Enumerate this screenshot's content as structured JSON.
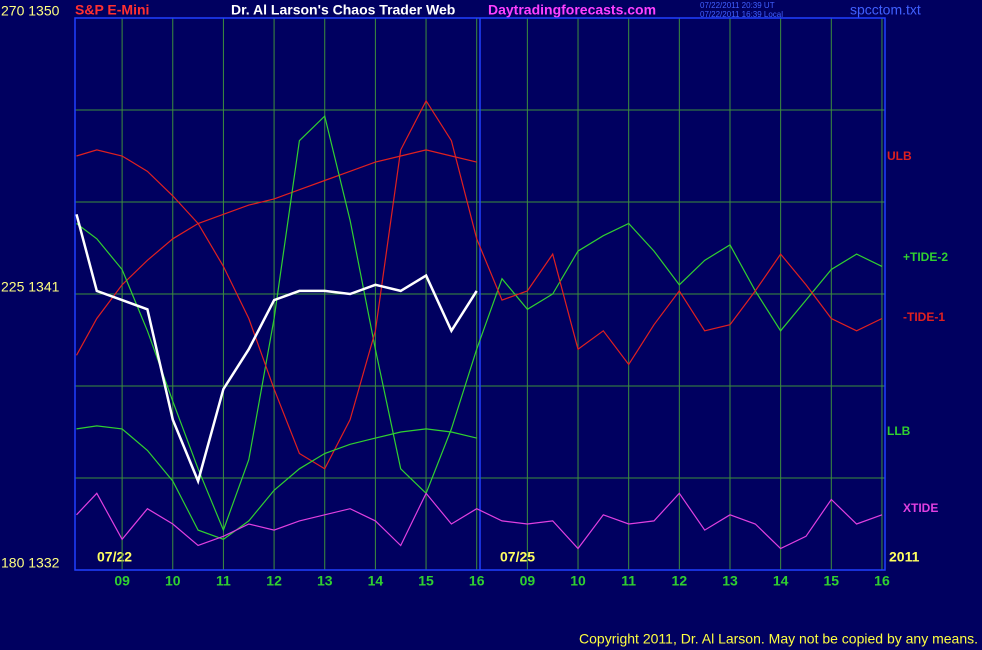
{
  "chart_data": {
    "type": "line",
    "title": "Dr. Al Larson's Chaos Trader Web",
    "instrument": "S&P E-Mini",
    "site": "Daytradingforecasts.com",
    "timestamps": [
      "07/22/2011 20:39 UT",
      "07/22/2011 16:39 Local"
    ],
    "file": "spcctom.txt",
    "date_labels": [
      "07/22",
      "07/25"
    ],
    "year": "2011",
    "copyright": "Copyright 2011, Dr. Al Larson. May not be copied by any means.",
    "background": "#000060",
    "grid": true,
    "grid_color": "#3d8f3d",
    "xlim": [
      0.07,
      16.06
    ],
    "ylim": [
      1332,
      1350
    ],
    "yticks": [
      {
        "value": 1332,
        "label": "180 1332"
      },
      {
        "value": 1341,
        "label": "225 1341"
      },
      {
        "value": 1350,
        "label": "270 1350"
      }
    ],
    "ygrid": [
      1335,
      1338,
      1344,
      1347
    ],
    "xticks": [
      {
        "value": 1,
        "label": "09"
      },
      {
        "value": 2,
        "label": "10"
      },
      {
        "value": 3,
        "label": "11"
      },
      {
        "value": 4,
        "label": "12"
      },
      {
        "value": 5,
        "label": "13"
      },
      {
        "value": 6,
        "label": "14"
      },
      {
        "value": 7,
        "label": "15"
      },
      {
        "value": 8,
        "label": "16"
      },
      {
        "value": 9,
        "label": "09"
      },
      {
        "value": 10,
        "label": "10"
      },
      {
        "value": 11,
        "label": "11"
      },
      {
        "value": 12,
        "label": "12"
      },
      {
        "value": 13,
        "label": "13"
      },
      {
        "value": 14,
        "label": "14"
      },
      {
        "value": 15,
        "label": "15"
      },
      {
        "value": 16,
        "label": "16"
      }
    ],
    "x": [
      0.1,
      0.5,
      1,
      1.5,
      2,
      2.5,
      3,
      3.5,
      4,
      4.5,
      5,
      5.5,
      6,
      6.5,
      7,
      7.5,
      8,
      8.5,
      9,
      9.5,
      10,
      10.5,
      11,
      11.5,
      12,
      12.5,
      13,
      13.5,
      14,
      14.5,
      15,
      15.5,
      16
    ],
    "series": [
      {
        "name": "ULB",
        "color": "#e02020",
        "values": [
          1339.0,
          1340.2,
          1341.3,
          1342.1,
          1342.8,
          1343.3,
          1343.6,
          1343.9,
          1344.1,
          1344.4,
          1344.7,
          1345.0,
          1345.3,
          1345.5,
          1345.7,
          1345.5,
          1345.3,
          null,
          null,
          null,
          null,
          null,
          null,
          null,
          null,
          null,
          null,
          null,
          null,
          null,
          null,
          null,
          null
        ]
      },
      {
        "name": "+TIDE-2",
        "color": "#30d030",
        "values": [
          1343.3,
          1342.8,
          1341.8,
          1339.8,
          1337.5,
          1335.3,
          1333.3,
          1335.6,
          1340.2,
          1346.0,
          1346.8,
          1343.4,
          1339.2,
          1335.3,
          1334.5,
          1336.6,
          1339.2,
          1341.5,
          1340.5,
          1341.0,
          1342.4,
          1342.9,
          1343.3,
          1342.4,
          1341.3,
          1342.1,
          1342.6,
          1341.1,
          1339.8,
          1340.8,
          1341.8,
          1342.3,
          1341.9
        ]
      },
      {
        "name": "-TIDE-1",
        "color": "#e02020",
        "values": [
          1345.5,
          1345.7,
          1345.5,
          1345.0,
          1344.2,
          1343.3,
          1341.9,
          1340.2,
          1337.9,
          1335.8,
          1335.3,
          1336.9,
          1339.8,
          1345.7,
          1347.3,
          1346.0,
          1342.8,
          1340.8,
          1341.1,
          1342.3,
          1339.2,
          1339.8,
          1338.7,
          1340.0,
          1341.1,
          1339.8,
          1340.0,
          1341.1,
          1342.3,
          1341.3,
          1340.2,
          1339.8,
          1340.2
        ]
      },
      {
        "name": "LLB",
        "color": "#30d030",
        "values": [
          1336.6,
          1336.7,
          1336.6,
          1335.9,
          1334.9,
          1333.3,
          1333.0,
          1333.6,
          1334.6,
          1335.3,
          1335.8,
          1336.1,
          1336.3,
          1336.5,
          1336.6,
          1336.5,
          1336.3,
          null,
          null,
          null,
          null,
          null,
          null,
          null,
          null,
          null,
          null,
          null,
          null,
          null,
          null,
          null,
          null
        ]
      },
      {
        "name": "XTIDE",
        "color": "#e040e0",
        "values": [
          1333.8,
          1334.5,
          1333.0,
          1334.0,
          1333.5,
          1332.8,
          1333.1,
          1333.5,
          1333.3,
          1333.6,
          1333.8,
          1334.0,
          1333.6,
          1332.8,
          1334.5,
          1333.5,
          1334.0,
          1333.6,
          1333.5,
          1333.6,
          1332.7,
          1333.8,
          1333.5,
          1333.6,
          1334.5,
          1333.3,
          1333.8,
          1333.5,
          1332.7,
          1333.1,
          1334.3,
          1333.5,
          1333.8
        ]
      },
      {
        "color": "#ffffff",
        "values": [
          1343.6,
          1341.1,
          1340.8,
          1340.5,
          1336.9,
          1334.9,
          1337.9,
          1339.2,
          1340.8,
          1341.1,
          1341.1,
          1341.0,
          1341.3,
          1341.1,
          1341.6,
          1339.8,
          1341.1,
          null,
          null,
          null,
          null,
          null,
          null,
          null,
          null,
          null,
          null,
          null,
          null,
          null,
          null,
          null,
          null
        ]
      }
    ]
  }
}
